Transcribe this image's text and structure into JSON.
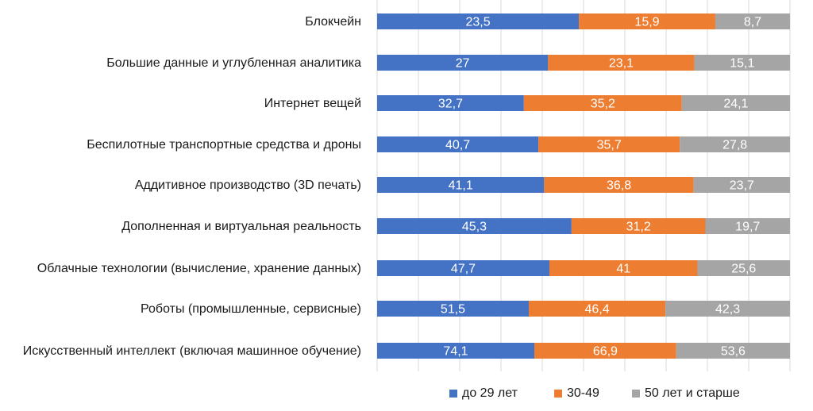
{
  "chart_data": {
    "type": "bar",
    "stacked": true,
    "orientation": "horizontal",
    "categories": [
      "Блокчейн",
      "Большие данные и углубленная аналитика",
      "Интернет вещей",
      "Беспилотные транспортные средства и дроны",
      "Аддитивное производство (3D печать)",
      "Дополненная и виртуальная реальность",
      "Облачные технологии (вычисление, хранение данных)",
      "Роботы (промышленные, сервисные)",
      "Искусственный интеллект (включая машинное обучение)"
    ],
    "series": [
      {
        "name": "до 29 лет",
        "color": "#4472C4",
        "values": [
          23.5,
          27,
          32.7,
          40.7,
          41.1,
          45.3,
          47.7,
          51.5,
          74.1
        ],
        "labels": [
          "23,5",
          "27",
          "32,7",
          "40,7",
          "41,1",
          "45,3",
          "47,7",
          "51,5",
          "74,1"
        ]
      },
      {
        "name": "30-49",
        "color": "#ED7D31",
        "values": [
          15.9,
          23.1,
          35.2,
          35.7,
          36.8,
          31.2,
          41,
          46.4,
          66.9
        ],
        "labels": [
          "15,9",
          "23,1",
          "35,2",
          "35,7",
          "36,8",
          "31,2",
          "41",
          "46,4",
          "66,9"
        ]
      },
      {
        "name": "50 лет и старше",
        "color": "#A5A5A5",
        "values": [
          8.7,
          15.1,
          24.1,
          27.8,
          23.7,
          19.7,
          25.6,
          42.3,
          53.6
        ],
        "labels": [
          "8,7",
          "15,1",
          "24,1",
          "27,8",
          "23,7",
          "19,7",
          "25,6",
          "42,3",
          "53,6"
        ]
      }
    ],
    "percent_stacked": true,
    "grid": true,
    "legend": "bottom",
    "title": "",
    "xlabel": "",
    "ylabel": ""
  }
}
